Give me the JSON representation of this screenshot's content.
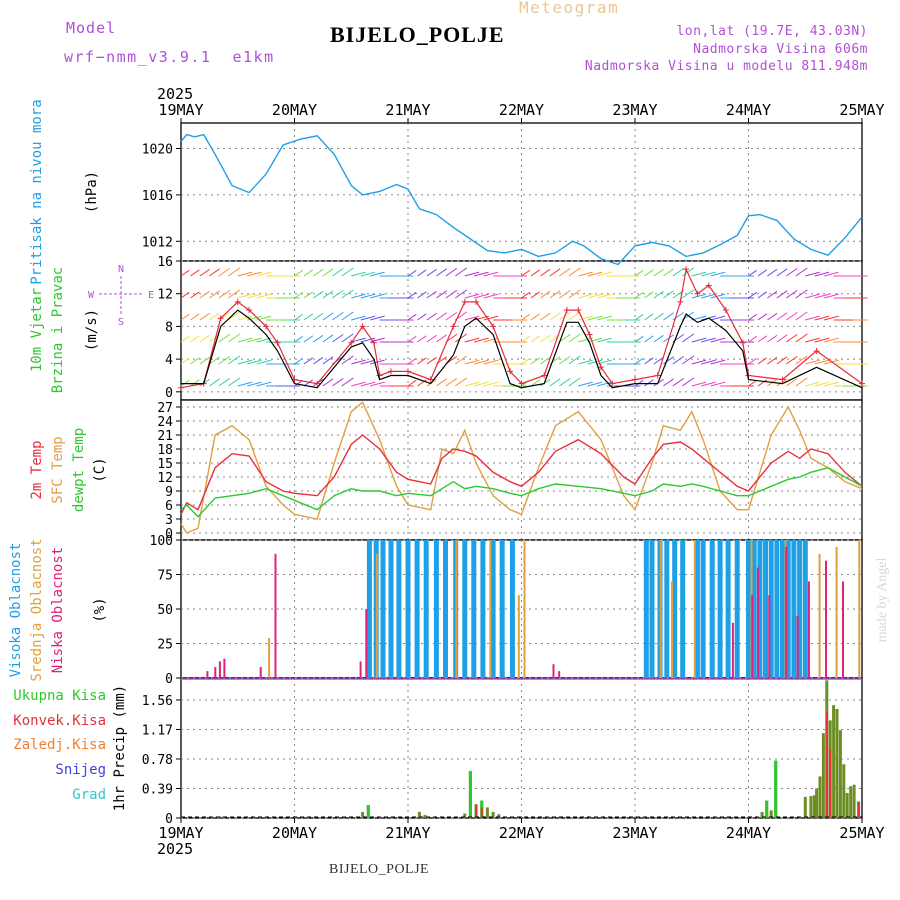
{
  "header": {
    "model_label": "Model",
    "model_name": "wrf−nmm_v3.9.1  e1km",
    "title": "BIJELO_POLJE",
    "meteogram": "Meteogram",
    "lonlat": "lon,lat (19.7E, 43.03N)",
    "altitude": "Nadmorska Visina 606m",
    "model_altitude": "Nadmorska Visina u modelu 811.948m",
    "footer_station": "BIJELO_POLJE",
    "made_by": "made by Angel"
  },
  "colors": {
    "pressure": "#1ea0e6",
    "speed_black": "#000000",
    "gust_red": "#e8283c",
    "temp2m": "#e8303c",
    "sfc_temp": "#e0a040",
    "dewpoint": "#2ec82e",
    "high_cloud": "#1ea0e6",
    "mid_cloud": "#e0a040",
    "low_cloud": "#e0207a",
    "total_precip": "#2ec82e",
    "conv_precip": "#e8303c",
    "frozen_precip": "#f08030",
    "snow": "#4040e0",
    "graupel": "#30c8c8",
    "purple": "#b050d8"
  },
  "chart_data": [
    {
      "type": "line",
      "panel": "pressure",
      "year_label_top": "2025",
      "year_label_bottom": "2025",
      "x_tick_labels": [
        "19MAY",
        "20MAY",
        "21MAY",
        "22MAY",
        "23MAY",
        "24MAY",
        "25MAY"
      ],
      "ylabel_lines": [
        "Pritisak na nivou mora"
      ],
      "unit": "(hPa)",
      "yticks": [
        "1020",
        "1016",
        "1012"
      ],
      "ylim": [
        1010.3,
        1022.2
      ],
      "x_days": [
        0,
        0.05,
        0.12,
        0.2,
        0.3,
        0.45,
        0.6,
        0.75,
        0.9,
        1.05,
        1.2,
        1.35,
        1.5,
        1.6,
        1.75,
        1.9,
        2.0,
        2.1,
        2.25,
        2.4,
        2.55,
        2.7,
        2.85,
        3.0,
        3.15,
        3.3,
        3.45,
        3.55,
        3.7,
        3.85,
        4.0,
        4.15,
        4.3,
        4.45,
        4.6,
        4.75,
        4.9,
        5.0,
        5.1,
        5.25,
        5.4,
        5.55,
        5.7,
        5.85,
        6.0
      ],
      "pressure_hPa": [
        1020.6,
        1021.2,
        1021.0,
        1021.2,
        1019.5,
        1016.8,
        1016.2,
        1017.8,
        1020.3,
        1020.8,
        1021.1,
        1019.5,
        1016.8,
        1016.0,
        1016.3,
        1016.9,
        1016.5,
        1014.8,
        1014.3,
        1013.2,
        1012.2,
        1011.2,
        1011.0,
        1011.3,
        1010.7,
        1011.0,
        1012.0,
        1011.6,
        1010.5,
        1010.0,
        1011.6,
        1011.9,
        1011.6,
        1010.7,
        1011.0,
        1011.7,
        1012.5,
        1014.2,
        1014.3,
        1013.8,
        1012.2,
        1011.3,
        1010.8,
        1012.3,
        1014.1
      ]
    },
    {
      "type": "line",
      "panel": "wind",
      "ylabel_lines": [
        "10m Vjetar",
        "Brzina i Pravac"
      ],
      "unit": "(m/s)",
      "compass": {
        "n": "N",
        "s": "S",
        "e": "E",
        "w": "W"
      },
      "yticks": [
        "16",
        "12",
        "8",
        "4",
        "0"
      ],
      "ylim": [
        -1,
        16
      ],
      "x_days": [
        0,
        0.2,
        0.35,
        0.5,
        0.6,
        0.75,
        0.85,
        1.0,
        1.2,
        1.5,
        1.6,
        1.7,
        1.75,
        1.85,
        2.0,
        2.2,
        2.4,
        2.5,
        2.6,
        2.75,
        2.9,
        3.0,
        3.2,
        3.4,
        3.5,
        3.6,
        3.7,
        3.8,
        4.0,
        4.2,
        4.4,
        4.45,
        4.55,
        4.65,
        4.8,
        4.95,
        5.0,
        5.3,
        5.6,
        6.0
      ],
      "speed_ms": [
        1.0,
        1.0,
        8.0,
        10.0,
        9.0,
        7.0,
        5.0,
        1.0,
        0.5,
        5.5,
        6.0,
        4.0,
        1.5,
        2.0,
        2.0,
        1.0,
        4.5,
        8.0,
        9.0,
        7.0,
        1.0,
        0.5,
        1.0,
        8.5,
        8.5,
        6.0,
        2.0,
        0.5,
        1.0,
        1.0,
        8.0,
        9.5,
        8.5,
        9.0,
        7.5,
        5.0,
        1.5,
        1.0,
        3.0,
        0.5
      ],
      "gust_ms": [
        0.5,
        1.0,
        9.0,
        11.0,
        10.0,
        8.0,
        6.0,
        1.5,
        1.0,
        6.0,
        8.0,
        6.0,
        2.0,
        2.5,
        2.5,
        1.5,
        8.0,
        11.0,
        11.0,
        8.0,
        2.5,
        1.0,
        2.0,
        10.0,
        10.0,
        7.0,
        3.0,
        1.0,
        1.5,
        2.0,
        11.0,
        15.0,
        12.0,
        13.0,
        10.0,
        6.0,
        2.0,
        1.5,
        5.0,
        1.0
      ]
    },
    {
      "type": "line",
      "panel": "temperature",
      "ylabel_lines": [
        "2m Temp",
        "SFC Temp",
        "dewpt Temp"
      ],
      "unit": "(C)",
      "yticks": [
        "27",
        "24",
        "21",
        "18",
        "15",
        "12",
        "9",
        "6",
        "3",
        "0"
      ],
      "ylim": [
        -1.5,
        28.5
      ],
      "x_days": [
        0,
        0.05,
        0.15,
        0.3,
        0.45,
        0.6,
        0.75,
        0.9,
        1.0,
        1.2,
        1.35,
        1.5,
        1.6,
        1.75,
        1.9,
        2.0,
        2.2,
        2.3,
        2.4,
        2.5,
        2.6,
        2.75,
        2.9,
        3.0,
        3.15,
        3.3,
        3.5,
        3.7,
        3.9,
        4.0,
        4.15,
        4.25,
        4.4,
        4.5,
        4.6,
        4.75,
        4.9,
        5.0,
        5.2,
        5.35,
        5.45,
        5.55,
        5.7,
        5.85,
        6.0
      ],
      "temp2m_C": [
        4.0,
        6.5,
        5.0,
        14.0,
        17.0,
        16.5,
        11.0,
        9.0,
        8.5,
        8.0,
        12.0,
        19.0,
        21.0,
        18.0,
        13.0,
        11.5,
        10.5,
        16.0,
        18.0,
        17.5,
        16.5,
        13.0,
        11.0,
        10.0,
        13.0,
        17.5,
        20.0,
        17.0,
        12.0,
        10.5,
        16.0,
        19.0,
        19.5,
        18.0,
        16.0,
        13.0,
        10.0,
        9.0,
        15.0,
        17.5,
        16.0,
        18.0,
        17.0,
        13.0,
        10.0
      ],
      "sfc_temp_C": [
        2.0,
        0.0,
        1.0,
        21.0,
        23.0,
        20.0,
        10.0,
        6.0,
        4.0,
        3.0,
        15.0,
        26.0,
        28.0,
        20.0,
        10.0,
        6.0,
        5.0,
        18.0,
        17.0,
        22.0,
        15.0,
        8.0,
        5.0,
        4.0,
        14.0,
        23.0,
        26.0,
        20.0,
        8.0,
        5.0,
        15.0,
        23.0,
        22.0,
        26.0,
        20.0,
        9.0,
        5.0,
        5.0,
        21.0,
        27.0,
        22.0,
        16.0,
        14.0,
        11.0,
        9.5
      ],
      "dewpoint_C": [
        5.0,
        6.0,
        3.5,
        7.5,
        8.0,
        8.5,
        9.5,
        8.0,
        7.0,
        5.0,
        8.0,
        9.5,
        9.0,
        9.0,
        8.0,
        8.5,
        8.0,
        9.5,
        11.0,
        9.5,
        10.0,
        9.5,
        8.5,
        8.0,
        9.5,
        10.5,
        10.0,
        9.5,
        8.5,
        8.0,
        9.0,
        10.5,
        10.0,
        10.5,
        10.0,
        9.0,
        8.0,
        8.0,
        10.0,
        11.5,
        12.0,
        13.0,
        14.0,
        12.0,
        10.0
      ]
    },
    {
      "type": "bar",
      "panel": "cloud",
      "ylabel_lines": [
        "Visoka Oblacnost",
        "Srednja Oblacnost",
        "Niska Oblacnost"
      ],
      "unit": "(%)",
      "yticks": [
        "100",
        "75",
        "50",
        "25",
        "0"
      ],
      "ylim": [
        0,
        100
      ],
      "low_cloud_pct": [
        [
          0.25,
          5
        ],
        [
          0.32,
          8
        ],
        [
          0.36,
          12
        ],
        [
          0.4,
          14
        ],
        [
          0.72,
          8
        ],
        [
          0.85,
          90
        ],
        [
          1.6,
          12
        ],
        [
          1.65,
          50
        ],
        [
          3.3,
          10
        ],
        [
          3.35,
          5
        ],
        [
          4.88,
          40
        ],
        [
          5.05,
          60
        ],
        [
          5.1,
          80
        ],
        [
          5.2,
          60
        ],
        [
          5.35,
          95
        ],
        [
          5.45,
          45
        ],
        [
          5.55,
          70
        ],
        [
          5.7,
          85
        ],
        [
          5.85,
          70
        ]
      ],
      "mid_cloud_pct": [
        [
          0.75,
          29
        ],
        [
          1.7,
          90
        ],
        [
          2.4,
          100
        ],
        [
          2.7,
          100
        ],
        [
          2.95,
          60
        ],
        [
          3.0,
          100
        ],
        [
          4.2,
          100
        ],
        [
          4.3,
          70
        ],
        [
          4.5,
          100
        ],
        [
          5.0,
          100
        ],
        [
          5.3,
          100
        ],
        [
          5.6,
          90
        ],
        [
          5.75,
          95
        ],
        [
          5.95,
          100
        ]
      ],
      "high_cloud_pct": [
        [
          1.66,
          100
        ],
        [
          1.72,
          100
        ],
        [
          1.78,
          100
        ],
        [
          1.85,
          100
        ],
        [
          1.92,
          100
        ],
        [
          2.0,
          100
        ],
        [
          2.08,
          100
        ],
        [
          2.16,
          100
        ],
        [
          2.25,
          100
        ],
        [
          2.33,
          100
        ],
        [
          2.42,
          100
        ],
        [
          2.5,
          100
        ],
        [
          2.58,
          100
        ],
        [
          2.66,
          100
        ],
        [
          2.75,
          100
        ],
        [
          2.83,
          100
        ],
        [
          2.92,
          100
        ],
        [
          4.1,
          100
        ],
        [
          4.15,
          100
        ],
        [
          4.22,
          100
        ],
        [
          4.28,
          100
        ],
        [
          4.35,
          100
        ],
        [
          4.42,
          100
        ],
        [
          4.55,
          100
        ],
        [
          4.6,
          100
        ],
        [
          4.68,
          100
        ],
        [
          4.75,
          100
        ],
        [
          4.82,
          100
        ],
        [
          4.9,
          100
        ],
        [
          5.0,
          100
        ],
        [
          5.05,
          100
        ],
        [
          5.1,
          100
        ],
        [
          5.15,
          100
        ],
        [
          5.2,
          100
        ],
        [
          5.25,
          100
        ],
        [
          5.3,
          100
        ],
        [
          5.35,
          100
        ],
        [
          5.4,
          100
        ],
        [
          5.45,
          100
        ],
        [
          5.5,
          100
        ]
      ]
    },
    {
      "type": "bar",
      "panel": "precip",
      "legend": [
        "Ukupna  Kisa",
        "Konvek.Kisa",
        "Zaledj.Kisa",
        "Snijeg",
        "Grad"
      ],
      "ylabel_lines": [
        "1hr Precip (mm)"
      ],
      "yticks": [
        "1.56",
        "1.17",
        "0.78",
        "0.39",
        "0"
      ],
      "ylim": [
        0,
        1.85
      ],
      "total_mm": [
        [
          0.35,
          0.02
        ],
        [
          1.6,
          0.08
        ],
        [
          1.65,
          0.17
        ],
        [
          2.1,
          0.08
        ],
        [
          2.15,
          0.04
        ],
        [
          2.5,
          0.06
        ],
        [
          2.55,
          0.62
        ],
        [
          2.6,
          0.18
        ],
        [
          2.65,
          0.23
        ],
        [
          2.7,
          0.14
        ],
        [
          2.75,
          0.08
        ],
        [
          2.8,
          0.05
        ],
        [
          5.12,
          0.08
        ],
        [
          5.16,
          0.23
        ],
        [
          5.2,
          0.1
        ],
        [
          5.24,
          0.76
        ],
        [
          5.5,
          0.28
        ],
        [
          5.55,
          0.29
        ],
        [
          5.58,
          0.3
        ],
        [
          5.6,
          0.39
        ],
        [
          5.63,
          0.55
        ],
        [
          5.66,
          1.12
        ],
        [
          5.69,
          1.82
        ],
        [
          5.72,
          1.29
        ],
        [
          5.75,
          1.49
        ],
        [
          5.78,
          1.44
        ],
        [
          5.81,
          1.16
        ],
        [
          5.84,
          0.71
        ],
        [
          5.87,
          0.33
        ],
        [
          5.9,
          0.42
        ],
        [
          5.93,
          0.44
        ],
        [
          5.97,
          0.22
        ]
      ],
      "convective_mm": [
        [
          2.6,
          0.18
        ],
        [
          2.65,
          0.14
        ],
        [
          5.69,
          1.4
        ],
        [
          5.72,
          0.9
        ],
        [
          5.97,
          0.2
        ]
      ]
    }
  ]
}
